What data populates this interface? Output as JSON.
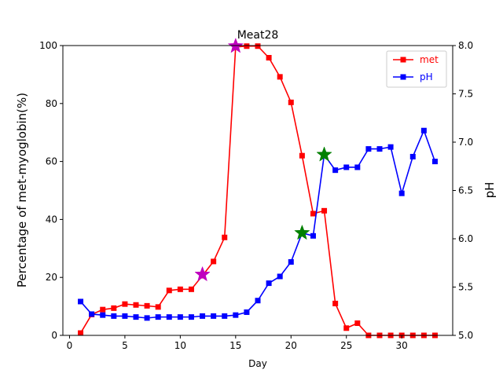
{
  "chart_data": {
    "type": "line",
    "title": "Meat28",
    "xlabel": "Day",
    "ylabel_left": "Percentage of met-myoglobin(%)",
    "ylabel_right": "pH",
    "xlim": [
      -0.6,
      34.6
    ],
    "ylim_left": [
      0,
      100
    ],
    "ylim_right": [
      5.0,
      8.0
    ],
    "x_ticks": [
      0,
      5,
      10,
      15,
      20,
      25,
      30
    ],
    "y_ticks_left": [
      0,
      20,
      40,
      60,
      80,
      100
    ],
    "y_ticks_right": [
      "5.0",
      "5.5",
      "6.0",
      "6.5",
      "7.0",
      "7.5",
      "8.0"
    ],
    "legend_position": "top-right",
    "series": [
      {
        "name": "met",
        "axis": "left",
        "color": "#ff0000",
        "marker": "square",
        "x": [
          1,
          2,
          3,
          4,
          5,
          6,
          7,
          8,
          9,
          10,
          11,
          12,
          13,
          14,
          15,
          16,
          17,
          18,
          19,
          20,
          21,
          22,
          23,
          24,
          25,
          26,
          27,
          28,
          29,
          30,
          31,
          32,
          33
        ],
        "values": [
          0.8,
          7.2,
          8.9,
          9.4,
          10.8,
          10.5,
          10.2,
          9.8,
          15.5,
          15.9,
          15.9,
          20.6,
          25.5,
          33.8,
          99.5,
          99.8,
          99.8,
          95.8,
          89.2,
          80.4,
          62.0,
          42.0,
          43.0,
          11.0,
          2.5,
          4.2,
          0.0,
          0.0,
          0.0,
          0.0,
          0.0,
          0.0,
          0.0
        ]
      },
      {
        "name": "pH",
        "axis": "right",
        "color": "#0000ff",
        "marker": "square",
        "x": [
          1,
          2,
          3,
          4,
          5,
          6,
          7,
          8,
          9,
          10,
          11,
          12,
          13,
          14,
          15,
          16,
          17,
          18,
          19,
          20,
          21,
          22,
          23,
          24,
          25,
          26,
          27,
          28,
          29,
          30,
          31,
          32,
          33
        ],
        "values": [
          5.35,
          5.22,
          5.21,
          5.2,
          5.2,
          5.19,
          5.18,
          5.19,
          5.19,
          5.19,
          5.19,
          5.2,
          5.2,
          5.2,
          5.21,
          5.24,
          5.36,
          5.54,
          5.61,
          5.76,
          6.06,
          6.03,
          6.87,
          6.71,
          6.74,
          6.74,
          6.93,
          6.93,
          6.95,
          6.47,
          6.85,
          7.12,
          6.8
        ]
      }
    ],
    "annotations": [
      {
        "marker": "star",
        "x": 12,
        "y": 21,
        "axis": "left",
        "color": "#bf00bf"
      },
      {
        "marker": "star",
        "x": 15,
        "y": 99.8,
        "axis": "left",
        "color": "#bf00bf"
      },
      {
        "marker": "star",
        "x": 21,
        "y": 6.06,
        "axis": "right",
        "color": "#008000"
      },
      {
        "marker": "star",
        "x": 23,
        "y": 6.87,
        "axis": "right",
        "color": "#008000"
      }
    ]
  }
}
